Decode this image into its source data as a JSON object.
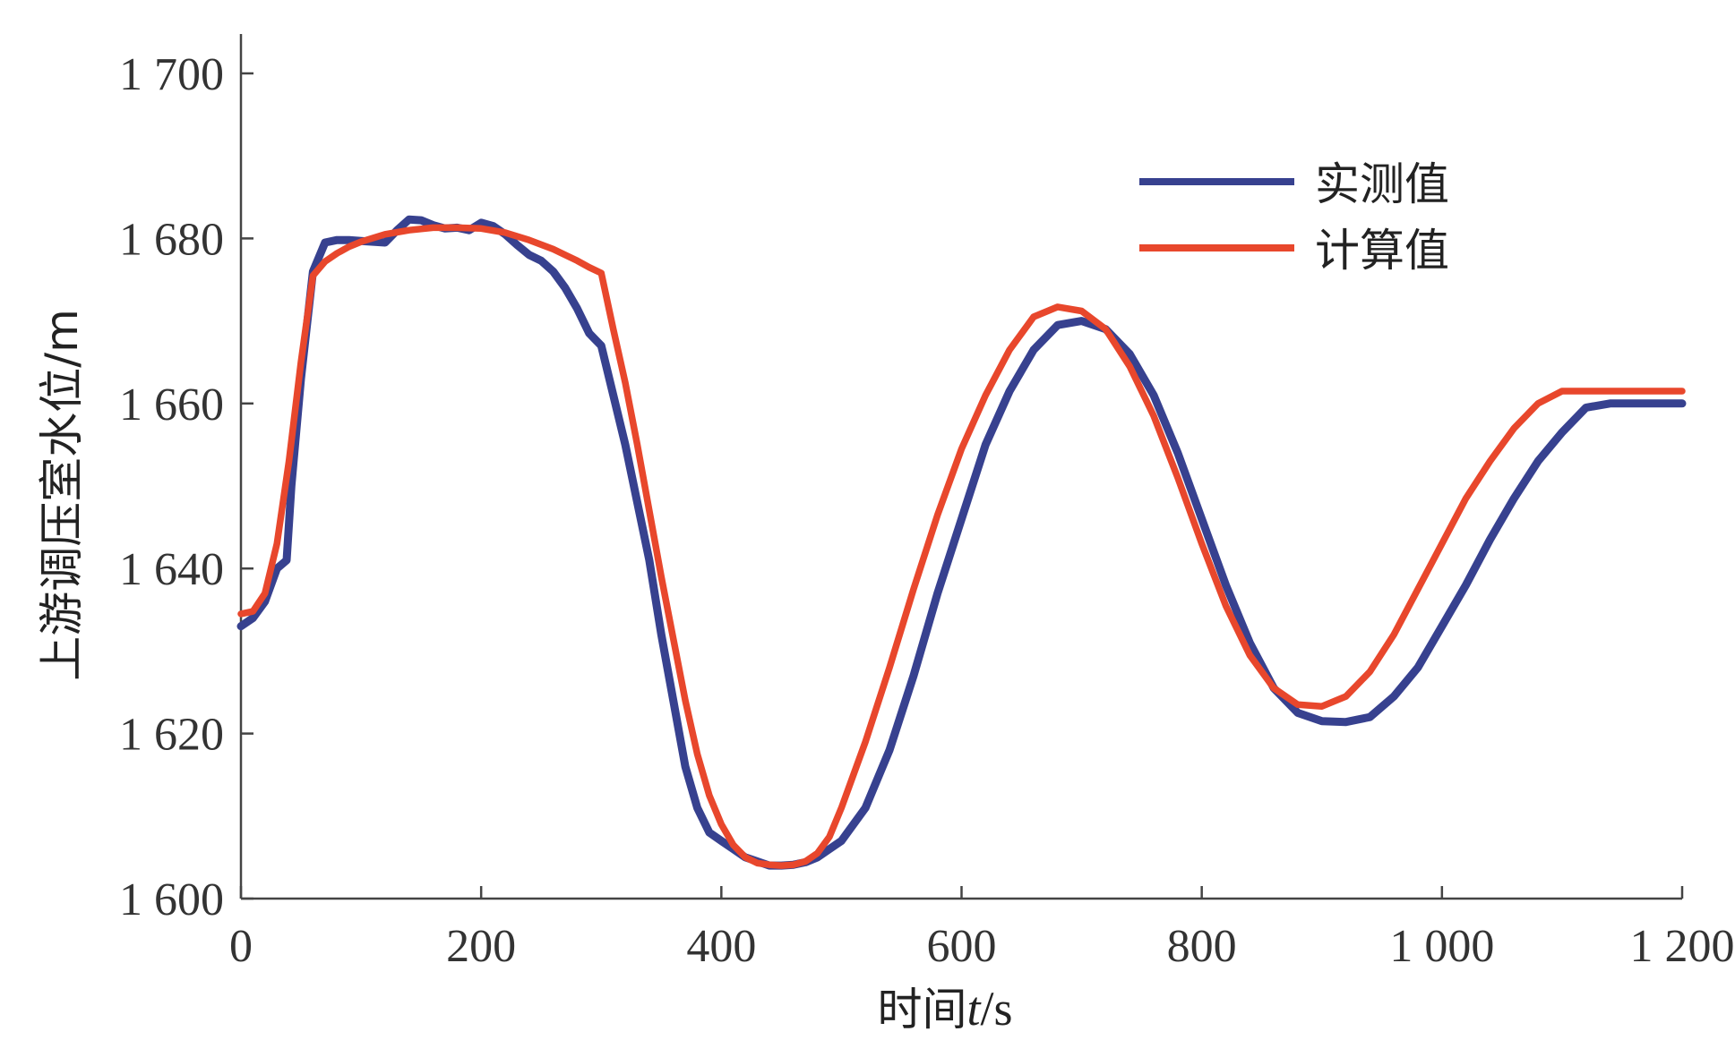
{
  "chart_data": {
    "type": "line",
    "xlabel_text": "时间",
    "xlabel_var": "t",
    "xlabel_unit": "/s",
    "ylabel": "上游调压室水位/m",
    "xlim": [
      0,
      1200
    ],
    "ylim": [
      1600,
      1705
    ],
    "xticks": [
      0,
      200,
      400,
      600,
      800,
      1000,
      1200
    ],
    "xtick_labels": [
      "0",
      "200",
      "400",
      "600",
      "800",
      "1 000",
      "1 200"
    ],
    "yticks": [
      1600,
      1620,
      1640,
      1660,
      1680,
      1700
    ],
    "ytick_labels": [
      "1 600",
      "1 620",
      "1 640",
      "1 660",
      "1 680",
      "1 700"
    ],
    "grid": false,
    "legend_position": "top-right",
    "series": [
      {
        "name": "实测值",
        "color": "#37418f",
        "x": [
          0,
          10,
          20,
          30,
          38,
          42,
          50,
          60,
          70,
          80,
          90,
          100,
          110,
          120,
          130,
          140,
          150,
          160,
          170,
          180,
          190,
          200,
          210,
          220,
          230,
          240,
          250,
          260,
          270,
          280,
          290,
          300,
          310,
          320,
          330,
          340,
          350,
          360,
          370,
          380,
          390,
          400,
          410,
          420,
          430,
          440,
          450,
          460,
          470,
          480,
          490,
          500,
          520,
          540,
          560,
          580,
          600,
          620,
          640,
          660,
          680,
          700,
          720,
          740,
          760,
          780,
          800,
          820,
          840,
          860,
          880,
          900,
          920,
          940,
          960,
          980,
          1000,
          1020,
          1040,
          1060,
          1080,
          1100,
          1120,
          1140,
          1160,
          1180,
          1200
        ],
        "y": [
          1633,
          1634,
          1636,
          1640,
          1641,
          1650,
          1663,
          1676,
          1679.5,
          1679.8,
          1679.8,
          1679.7,
          1679.6,
          1679.5,
          1681,
          1682.3,
          1682.2,
          1681.6,
          1681.2,
          1681.3,
          1681,
          1681.9,
          1681.5,
          1680.5,
          1679.2,
          1678,
          1677.3,
          1676,
          1674,
          1671.5,
          1668.5,
          1667,
          1661,
          1655,
          1648,
          1641,
          1632,
          1624,
          1616,
          1611,
          1608,
          1607,
          1606,
          1605,
          1604.5,
          1604,
          1604,
          1604.1,
          1604.4,
          1605,
          1606,
          1607,
          1611,
          1618,
          1627,
          1637,
          1646,
          1655,
          1661.5,
          1666.5,
          1669.5,
          1670,
          1669,
          1666,
          1661,
          1654,
          1646,
          1638,
          1631,
          1625.5,
          1622.5,
          1621.5,
          1621.4,
          1622,
          1624.5,
          1628,
          1633,
          1638,
          1643.5,
          1648.5,
          1653,
          1656.5,
          1659.5,
          1660,
          1660,
          1660,
          1660
        ]
      },
      {
        "name": "计算值",
        "color": "#e8472c",
        "x": [
          0,
          10,
          20,
          30,
          40,
          50,
          60,
          70,
          80,
          90,
          100,
          120,
          140,
          160,
          180,
          200,
          220,
          240,
          260,
          280,
          290,
          300,
          310,
          320,
          330,
          340,
          350,
          360,
          370,
          380,
          390,
          400,
          410,
          420,
          430,
          440,
          450,
          460,
          470,
          480,
          490,
          500,
          520,
          540,
          560,
          580,
          600,
          620,
          640,
          660,
          680,
          700,
          720,
          740,
          760,
          780,
          800,
          820,
          840,
          860,
          880,
          900,
          920,
          940,
          960,
          980,
          1000,
          1020,
          1040,
          1060,
          1080,
          1100,
          1120,
          1140,
          1160,
          1180,
          1200
        ],
        "y": [
          1634.5,
          1634.8,
          1637,
          1643,
          1653,
          1665,
          1675.5,
          1677.2,
          1678.2,
          1679,
          1679.6,
          1680.5,
          1681,
          1681.3,
          1681.3,
          1681.2,
          1680.7,
          1679.8,
          1678.7,
          1677.3,
          1676.5,
          1675.8,
          1669,
          1662.5,
          1655,
          1647,
          1639,
          1631.5,
          1624,
          1617.5,
          1612.5,
          1609,
          1606.5,
          1605,
          1604.3,
          1604.1,
          1604,
          1604.1,
          1604.5,
          1605.5,
          1607.5,
          1611,
          1619,
          1628,
          1637.5,
          1646.5,
          1654.5,
          1661,
          1666.5,
          1670.5,
          1671.7,
          1671.2,
          1669,
          1664.5,
          1658.5,
          1651,
          1643,
          1635.5,
          1629.5,
          1625.5,
          1623.5,
          1623.3,
          1624.5,
          1627.5,
          1632,
          1637.5,
          1643,
          1648.5,
          1653,
          1657,
          1660,
          1661.5,
          1661.5,
          1661.5,
          1661.5,
          1661.5,
          1661.5
        ]
      }
    ]
  }
}
